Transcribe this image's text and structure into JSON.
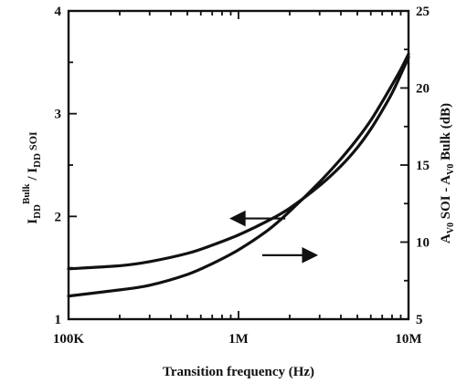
{
  "chart_data": {
    "type": "line",
    "x_scale": "log",
    "xlabel": "Transition frequency (Hz)",
    "xlim": [
      100000,
      10000000
    ],
    "x_ticks": [
      {
        "value": 100000,
        "label": "100K"
      },
      {
        "value": 1000000,
        "label": "1M"
      },
      {
        "value": 10000000,
        "label": "10M"
      }
    ],
    "ylabel_left": {
      "main": "I",
      "sub1": "DD",
      "sup1": "Bulk",
      "sep": " / I",
      "sub2": "DD",
      "tail": " SOI"
    },
    "ylim_left": [
      1,
      4
    ],
    "y_ticks_left": [
      {
        "value": 1,
        "label": "1"
      },
      {
        "value": 2,
        "label": "2"
      },
      {
        "value": 3,
        "label": "3"
      },
      {
        "value": 4,
        "label": "4"
      }
    ],
    "ylabel_right": "A_v0 SOI - A_v0 Bulk (dB)",
    "ylabel_right_parts": {
      "a1": "A",
      "s1": "V0",
      "mid": " SOI - A",
      "s2": "V0",
      "tail": " Bulk (dB)"
    },
    "ylim_right": [
      5,
      25
    ],
    "y_ticks_right": [
      {
        "value": 5,
        "label": "5"
      },
      {
        "value": 10,
        "label": "10"
      },
      {
        "value": 15,
        "label": "15"
      },
      {
        "value": 20,
        "label": "20"
      },
      {
        "value": 25,
        "label": "25"
      }
    ],
    "grid": false,
    "series": [
      {
        "axis": "left",
        "x": [
          100000,
          200000,
          300000,
          500000,
          700000,
          1000000,
          1500000,
          2000000,
          3000000,
          4000000,
          5000000,
          6000000,
          7000000,
          8000000,
          9000000,
          10000000
        ],
        "y": [
          1.49,
          1.52,
          1.56,
          1.64,
          1.72,
          1.82,
          1.96,
          2.08,
          2.3,
          2.49,
          2.67,
          2.85,
          3.03,
          3.2,
          3.38,
          3.55
        ]
      },
      {
        "axis": "right",
        "x": [
          100000,
          200000,
          300000,
          500000,
          700000,
          1000000,
          1500000,
          2000000,
          3000000,
          4000000,
          5000000,
          6000000,
          7000000,
          8000000,
          9000000,
          10000000
        ],
        "y": [
          6.5,
          6.9,
          7.2,
          7.9,
          8.6,
          9.5,
          10.8,
          12.0,
          13.9,
          15.4,
          16.7,
          17.9,
          19.1,
          20.2,
          21.2,
          22.2
        ]
      }
    ],
    "annotations": [
      {
        "type": "arrow",
        "direction": "left",
        "points_to_axis": "left",
        "x": 1300000,
        "y_axis": "left",
        "y": 1.98
      },
      {
        "type": "arrow",
        "direction": "right",
        "points_to_axis": "right",
        "x": 2000000,
        "y_axis": "right",
        "y": 9.15
      }
    ]
  }
}
